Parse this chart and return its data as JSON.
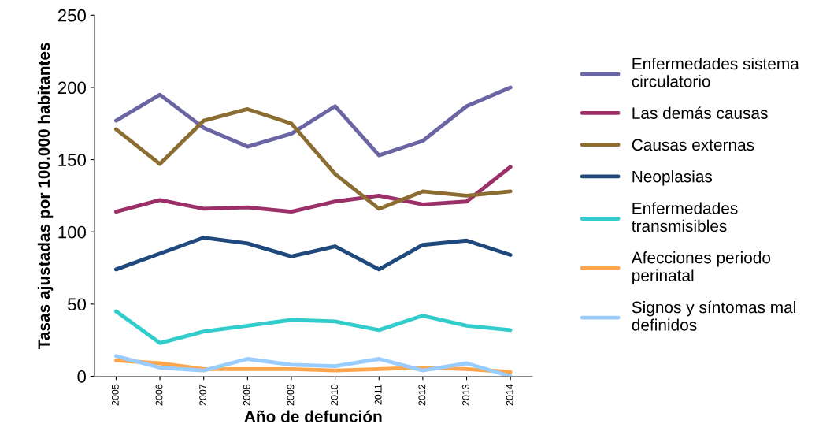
{
  "chart_data": {
    "type": "line",
    "xlabel": "Año de defunción",
    "ylabel": "Tasas ajustadas por 100.000 habitantes",
    "categories": [
      "2005",
      "2006",
      "2007",
      "2008",
      "2009",
      "2010",
      "2011",
      "2012",
      "2013",
      "2014"
    ],
    "ylim": [
      0,
      250
    ],
    "yticks": [
      0,
      50,
      100,
      150,
      200,
      250
    ],
    "grid": false,
    "legend": "right",
    "marker": "none",
    "line_style": "solid",
    "series": [
      {
        "name": "Enfermedades sistema\ncirculatorio",
        "color": "#6b66a3",
        "values": [
          177,
          195,
          172,
          159,
          168,
          187,
          153,
          163,
          187,
          200
        ]
      },
      {
        "name": "Las demás causas",
        "color": "#9b3068",
        "values": [
          114,
          122,
          116,
          117,
          114,
          121,
          125,
          119,
          121,
          145
        ]
      },
      {
        "name": "Causas externas",
        "color": "#8c6d31",
        "values": [
          171,
          147,
          177,
          185,
          175,
          140,
          116,
          128,
          125,
          128
        ]
      },
      {
        "name": "Neoplasias",
        "color": "#1f497d",
        "values": [
          74,
          85,
          96,
          92,
          83,
          90,
          74,
          91,
          94,
          84
        ]
      },
      {
        "name": "Enfermedades\ntransmisibles",
        "color": "#33cccc",
        "values": [
          45,
          23,
          31,
          35,
          39,
          38,
          32,
          42,
          35,
          32
        ]
      },
      {
        "name": "Afecciones periodo\nperinatal",
        "color": "#ffa64d",
        "values": [
          11,
          9,
          5,
          5,
          5,
          4,
          5,
          6,
          5,
          3
        ]
      },
      {
        "name": "Signos y síntomas mal\ndefinidos",
        "color": "#99ccff",
        "values": [
          14,
          6,
          4,
          12,
          8,
          7,
          12,
          4,
          9,
          0
        ]
      }
    ]
  }
}
